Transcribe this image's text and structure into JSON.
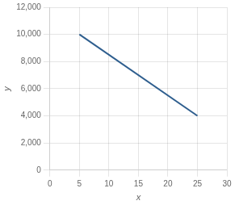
{
  "chart_data": {
    "type": "line",
    "x": [
      5,
      25
    ],
    "values": [
      10000,
      4000
    ],
    "color": "#2e5e8e",
    "xlim": [
      0,
      30
    ],
    "ylim": [
      0,
      12000
    ],
    "xticks": [
      0,
      5,
      10,
      15,
      20,
      25,
      30
    ],
    "yticks": [
      0,
      {
        "value": 2000,
        "label": "2,000"
      },
      {
        "value": 4000,
        "label": "4,000"
      },
      {
        "value": 6000,
        "label": "6,000"
      },
      {
        "value": 8000,
        "label": "8,000"
      },
      {
        "value": 10000,
        "label": "10,000"
      },
      {
        "value": 12000,
        "label": "12,000"
      }
    ],
    "xlabel": "x",
    "ylabel": "y",
    "grid": true
  }
}
